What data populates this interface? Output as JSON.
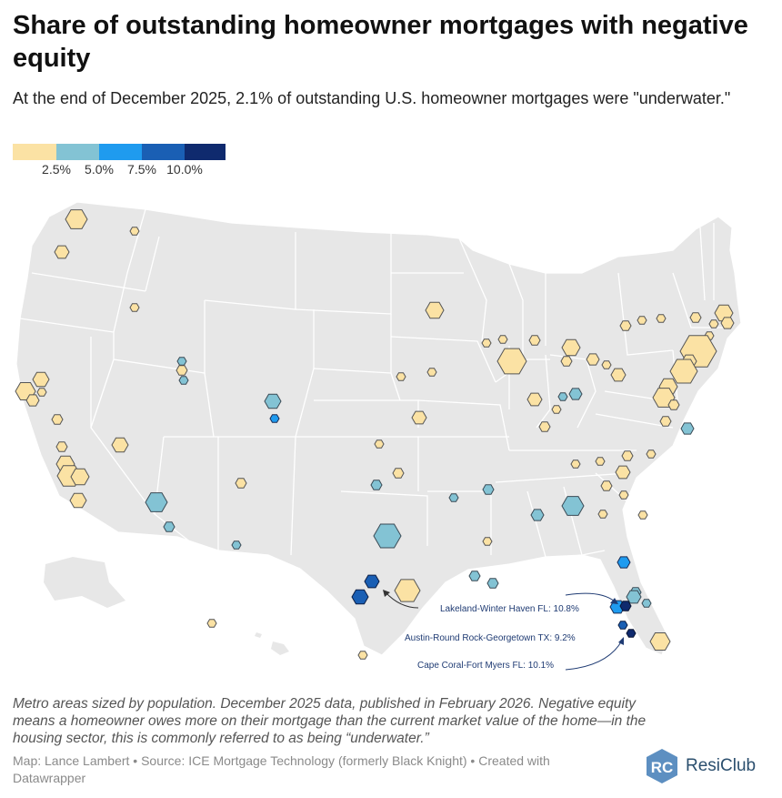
{
  "title": "Share of outstanding homeowner mortgages with negative equity",
  "subtitle": "At the end of December 2025, 2.1% of outstanding U.S. homeowner mortgages were \"underwater.\"",
  "legend": {
    "colors": [
      "#fbe2a4",
      "#83c3d4",
      "#1f9bef",
      "#1a5fb4",
      "#0f2a6e"
    ],
    "labels": [
      "2.5%",
      "5.0%",
      "7.5%",
      "10.0%"
    ],
    "thresholds": [
      2.5,
      5.0,
      7.5,
      10.0
    ]
  },
  "annotations": {
    "lakeland": "Lakeland-Winter Haven FL: 10.8%",
    "austin": "Austin-Round Rock-Georgetown TX: 9.2%",
    "cape_coral": "Cape Coral-Fort Myers FL: 10.1%"
  },
  "metros": {
    "fill_scale": "binned by legend thresholds",
    "count": 113
  },
  "note": "Metro areas sized by population. December 2025 data, published in February 2026. Negative equity means a homeowner owes more on their mortgage than the current market value of the home—in the housing sector, this is commonly referred to as being “underwater.”",
  "source": "Map: Lance Lambert • Source: ICE Mortgage Technology (formerly Black Knight) • Created with Datawrapper",
  "brand": {
    "logo_text": "RC",
    "name": "ResiClub",
    "color": "#2b4f6e"
  }
}
